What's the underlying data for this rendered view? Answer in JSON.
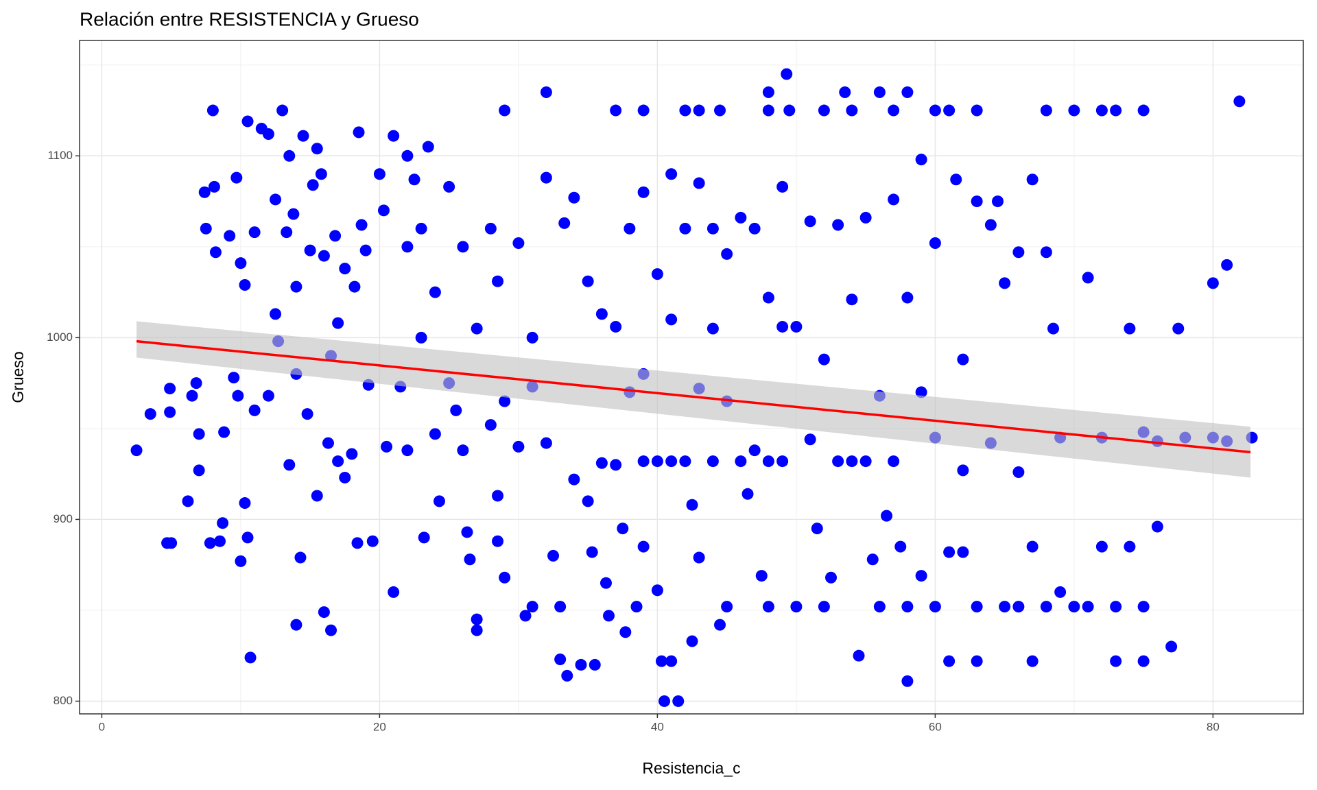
{
  "chart_data": {
    "type": "scatter",
    "title": "Relación entre RESISTENCIA y Grueso",
    "x_label": "Resistencia_c",
    "y_label": "Grueso",
    "xlim": [
      -1.6,
      86.5
    ],
    "ylim": [
      793,
      1163.5
    ],
    "xticks": [
      0,
      20,
      40,
      60,
      80
    ],
    "yticks": [
      800,
      900,
      1000,
      1100
    ],
    "x_minor_ticks": [
      10,
      30,
      50,
      70
    ],
    "y_minor_ticks": [
      850,
      950,
      1050,
      1150
    ],
    "grid": true,
    "series": [
      {
        "color": "#0000ff",
        "x": [
          2.5,
          3.5,
          4.7,
          5,
          4.9,
          4.9,
          6.2,
          6.5,
          6.8,
          7,
          7,
          7.4,
          7.5,
          7.8,
          8,
          8.1,
          8.2,
          8.5,
          8.7,
          8.8,
          9.2,
          9.5,
          9.7,
          9.8,
          10,
          10,
          10.3,
          10.3,
          10.5,
          10.7,
          10.5,
          11,
          11,
          11.5,
          12,
          12,
          12.5,
          12.5,
          12.7,
          13,
          13.3,
          13.5,
          13.5,
          13.8,
          14,
          14,
          14,
          14.3,
          14.5,
          14.8,
          15,
          15.2,
          15.5,
          15.5,
          15.8,
          16,
          16,
          16.3,
          16.5,
          16.5,
          16.8,
          17,
          17,
          17.5,
          17.5,
          18,
          18.2,
          18.4,
          18.5,
          18.7,
          19,
          19.2,
          19.5,
          20,
          20.3,
          20.5,
          21,
          21,
          21.5,
          22,
          22,
          22,
          22.5,
          23,
          23,
          23.2,
          23.5,
          24,
          24,
          24.3,
          25,
          25,
          25.5,
          26,
          26,
          26.3,
          26.5,
          27,
          27,
          27,
          28,
          28,
          28.5,
          28.5,
          28.5,
          29,
          29,
          29,
          30,
          30,
          30.5,
          31,
          31,
          31,
          32,
          32,
          32,
          32.5,
          33,
          33,
          33.3,
          33.5,
          34,
          34,
          34.5,
          35,
          35,
          35.3,
          35.5,
          36,
          36,
          36.3,
          36.5,
          37,
          37,
          37,
          37.5,
          37.7,
          38,
          38,
          38.5,
          39,
          39,
          39,
          39,
          39,
          40,
          40,
          40,
          40.3,
          40.5,
          41,
          41,
          41,
          41,
          41.5,
          42,
          42,
          42,
          42.5,
          42.5,
          43,
          43,
          43,
          43,
          44,
          44,
          44,
          44.5,
          44.5,
          45,
          45,
          45,
          46,
          46,
          46.5,
          47,
          47,
          47.5,
          48,
          48,
          48,
          48,
          48,
          49,
          49,
          49,
          49.5,
          49.3,
          50,
          50,
          51,
          51,
          51.5,
          52,
          52,
          52,
          52.5,
          53,
          53,
          53.5,
          54,
          54,
          54,
          54.5,
          55,
          55,
          55.5,
          56,
          56,
          56,
          56.5,
          57,
          57,
          57,
          57.5,
          58,
          58,
          58,
          58,
          59,
          59,
          59,
          60,
          60,
          60,
          60,
          61,
          61,
          61,
          61.5,
          62,
          62,
          62,
          63,
          63,
          63,
          63,
          64,
          64,
          64.5,
          65,
          65,
          66,
          66,
          66,
          67,
          67,
          67,
          68,
          68,
          68,
          68.5,
          69,
          69,
          70,
          70,
          71,
          71,
          72,
          72,
          72,
          73,
          73,
          73,
          74,
          74,
          75,
          75,
          75,
          75,
          76,
          76,
          77,
          77.5,
          78,
          80,
          80,
          81,
          81,
          81.9,
          82.8
        ],
        "values": [
          938,
          958,
          887,
          887,
          972,
          959,
          910,
          968,
          975,
          947,
          927,
          1080,
          1060,
          887,
          1125,
          1083,
          1047,
          888,
          898,
          948,
          1056,
          978,
          1088,
          968,
          1041,
          877,
          1029,
          909,
          890,
          824,
          1119,
          1058,
          960,
          1115,
          1112,
          968,
          1076,
          1013,
          998,
          1125,
          1058,
          1100,
          930,
          1068,
          1028,
          980,
          842,
          879,
          1111,
          958,
          1048,
          1084,
          1104,
          913,
          1090,
          1045,
          849,
          942,
          990,
          839,
          1056,
          1008,
          932,
          1038,
          923,
          936,
          1028,
          887,
          1113,
          1062,
          1048,
          974,
          888,
          1090,
          1070,
          940,
          1111,
          860,
          973,
          1100,
          1050,
          938,
          1087,
          1060,
          1000,
          890,
          1105,
          1025,
          947,
          910,
          1083,
          975,
          960,
          1050,
          938,
          893,
          878,
          1005,
          839,
          845,
          1060,
          952,
          1031,
          913,
          888,
          1125,
          868,
          965,
          1052,
          940,
          847,
          1000,
          973,
          852,
          1135,
          1088,
          942,
          880,
          823,
          852,
          1063,
          814,
          1077,
          922,
          820,
          1031,
          910,
          882,
          820,
          1013,
          931,
          865,
          847,
          1125,
          1006,
          930,
          895,
          838,
          1060,
          970,
          852,
          1125,
          1080,
          980,
          932,
          885,
          1035,
          932,
          861,
          822,
          800,
          1090,
          1010,
          932,
          822,
          800,
          1125,
          1060,
          932,
          908,
          833,
          1125,
          1085,
          972,
          879,
          1060,
          1005,
          932,
          1125,
          842,
          1046,
          965,
          852,
          1066,
          932,
          914,
          1060,
          938,
          869,
          1135,
          1125,
          1022,
          932,
          852,
          1083,
          1006,
          932,
          1125,
          1145,
          1006,
          852,
          1064,
          944,
          895,
          1125,
          988,
          852,
          868,
          1062,
          932,
          1135,
          1125,
          1021,
          932,
          825,
          1066,
          932,
          878,
          1135,
          968,
          852,
          902,
          1125,
          1076,
          932,
          885,
          1135,
          1022,
          852,
          811,
          1098,
          970,
          869,
          1125,
          1052,
          945,
          852,
          1125,
          882,
          822,
          1087,
          988,
          927,
          882,
          1125,
          1075,
          852,
          822,
          1062,
          942,
          1075,
          1030,
          852,
          1047,
          926,
          852,
          1087,
          885,
          822,
          1125,
          1047,
          852,
          1005,
          945,
          860,
          1125,
          852,
          1033,
          852,
          1125,
          945,
          885,
          1125,
          852,
          822,
          1005,
          885,
          1125,
          948,
          852,
          822,
          943,
          896,
          830,
          1005,
          945,
          1030,
          945,
          1040,
          943,
          1130,
          945
        ]
      }
    ],
    "trend": {
      "color": "#ff0000",
      "x": [
        2.5,
        82.7
      ],
      "values": [
        998,
        937
      ]
    },
    "band": {
      "color": "#bfbfbf",
      "x": [
        2.5,
        82.7
      ],
      "upper": [
        1009,
        951
      ],
      "lower": [
        989,
        923
      ]
    }
  }
}
